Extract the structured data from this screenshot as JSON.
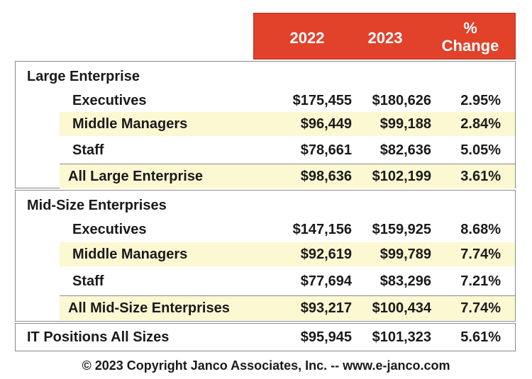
{
  "chart_data": {
    "type": "table",
    "columns": [
      "2022",
      "2023",
      "%",
      "Change"
    ],
    "sections": [
      {
        "heading": "Large Enterprise",
        "rows": [
          {
            "label": "Executives",
            "y2022": "$175,455",
            "y2023": "$180,626",
            "change": "2.95%"
          },
          {
            "label": "Middle Managers",
            "y2022": "$96,449",
            "y2023": "$99,188",
            "change": "2.84%"
          },
          {
            "label": "Staff",
            "y2022": "$78,661",
            "y2023": "$82,636",
            "change": "5.05%"
          },
          {
            "label": "All Large Enterprise",
            "y2022": "$98,636",
            "y2023": "$102,199",
            "change": "3.61%"
          }
        ]
      },
      {
        "heading": "Mid-Size Enterprises",
        "rows": [
          {
            "label": "Executives",
            "y2022": "$147,156",
            "y2023": "$159,925",
            "change": "8.68%"
          },
          {
            "label": "Middle Managers",
            "y2022": "$92,619",
            "y2023": "$99,789",
            "change": "7.74%"
          },
          {
            "label": "Staff",
            "y2022": "$77,694",
            "y2023": "$83,296",
            "change": "7.21%"
          },
          {
            "label": "All Mid-Size Enterprises",
            "y2022": "$93,217",
            "y2023": "$100,434",
            "change": "7.74%"
          }
        ]
      }
    ],
    "total": {
      "label": "IT Positions All Sizes",
      "y2022": "$95,945",
      "y2023": "$101,323",
      "change": "5.61%"
    }
  },
  "footer": "© 2023 Copyright Janco Associates, Inc.  -- www.e-janco.com",
  "colors": {
    "header_bg": "#e2412a",
    "row_shade": "#fbf8d2",
    "border": "#8a8a8a"
  }
}
